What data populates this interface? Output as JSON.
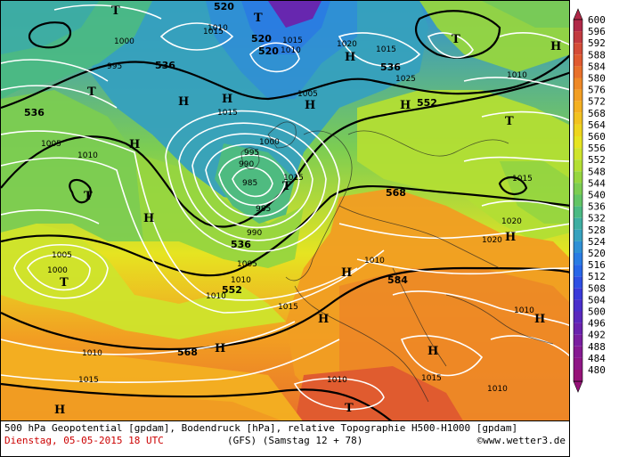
{
  "caption": {
    "line1": "500 hPa Geopotential [gpdam], Bodendruck [hPa], relative Topographie H500-H1000 [gpdam]",
    "date": "Dienstag, 05-05-2015  18 UTC",
    "model": "(GFS)  (Samstag 12 + 78)",
    "site": "©www.wetter3.de"
  },
  "legend": {
    "values": [
      "600",
      "596",
      "592",
      "588",
      "584",
      "580",
      "576",
      "572",
      "568",
      "564",
      "560",
      "556",
      "552",
      "548",
      "544",
      "540",
      "536",
      "532",
      "528",
      "524",
      "520",
      "516",
      "512",
      "508",
      "504",
      "500",
      "496",
      "492",
      "488",
      "484",
      "480"
    ],
    "colors": [
      "#b02848",
      "#c23a40",
      "#d44c38",
      "#e05a30",
      "#e8702a",
      "#ee8826",
      "#f29e22",
      "#f4b021",
      "#f2c220",
      "#eed51f",
      "#e6e421",
      "#cfe42c",
      "#b3df34",
      "#96d640",
      "#7ccd52",
      "#62c566",
      "#4bba84",
      "#3eaea2",
      "#36a1be",
      "#2f90d5",
      "#2a7ce3",
      "#2866e8",
      "#2e4fe3",
      "#3a3ad9",
      "#4a2ecb",
      "#5a28bd",
      "#6a22ae",
      "#7a1ea0",
      "#861a92",
      "#8e1686",
      "#961278"
    ]
  },
  "pressure_highs": [
    "H",
    "H",
    "H",
    "H",
    "H",
    "H",
    "H",
    "H",
    "H",
    "H",
    "H",
    "H",
    "H",
    "H",
    "H"
  ],
  "pressure_lows": [
    "T",
    "T",
    "T",
    "T",
    "T",
    "T",
    "T",
    "T",
    "T"
  ],
  "isobar_labels": [
    "1010",
    "1015",
    "1000",
    "995",
    "1005",
    "1010",
    "1015",
    "1015",
    "1010",
    "1020",
    "1005",
    "1025",
    "1015",
    "1000",
    "995",
    "990",
    "985",
    "985",
    "990",
    "1005",
    "1010",
    "1010",
    "1015",
    "1010",
    "1015",
    "1010",
    "1020",
    "1015",
    "1020",
    "1010",
    "1000",
    "1005",
    "1010",
    "1015",
    "1010",
    "1010",
    "1015"
  ],
  "geopotential_labels": [
    "520",
    "520",
    "520",
    "536",
    "536",
    "536",
    "552",
    "552",
    "568",
    "568",
    "584",
    "536",
    "552"
  ]
}
